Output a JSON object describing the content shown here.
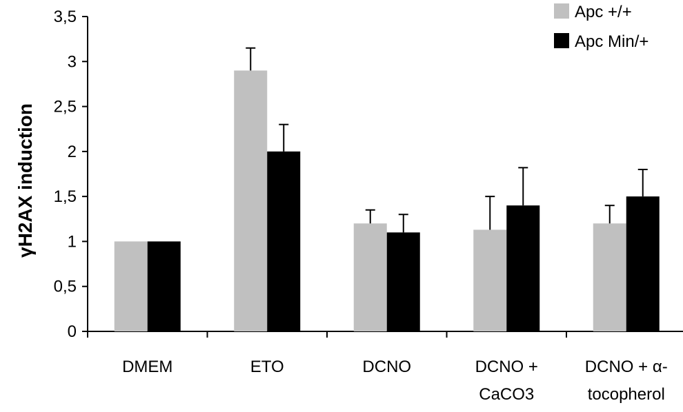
{
  "chart_data": {
    "type": "bar",
    "title": "",
    "xlabel": "",
    "ylabel": "γH2AX induction",
    "ylim": [
      0,
      3.5
    ],
    "yticks": [
      {
        "value": 0,
        "label": "0"
      },
      {
        "value": 0.5,
        "label": "0,5"
      },
      {
        "value": 1,
        "label": "1"
      },
      {
        "value": 1.5,
        "label": "1,5"
      },
      {
        "value": 2,
        "label": "2"
      },
      {
        "value": 2.5,
        "label": "2,5"
      },
      {
        "value": 3,
        "label": "3"
      },
      {
        "value": 3.5,
        "label": "3,5"
      }
    ],
    "categories": [
      [
        "DMEM"
      ],
      [
        "ETO"
      ],
      [
        "DCNO"
      ],
      [
        "DCNO +",
        "CaCO3"
      ],
      [
        "DCNO + α-",
        "tocopherol"
      ]
    ],
    "series": [
      {
        "name": "Apc +/+",
        "color": "#c0c0c0",
        "values": [
          1.0,
          2.9,
          1.2,
          1.13,
          1.2
        ],
        "errors": [
          0,
          0.25,
          0.15,
          0.37,
          0.2
        ]
      },
      {
        "name": "Apc Min/+",
        "color": "#000000",
        "values": [
          1.0,
          2.0,
          1.1,
          1.4,
          1.5
        ],
        "errors": [
          0,
          0.3,
          0.2,
          0.42,
          0.3
        ]
      }
    ],
    "grid": false,
    "legend_position": "top-right"
  }
}
